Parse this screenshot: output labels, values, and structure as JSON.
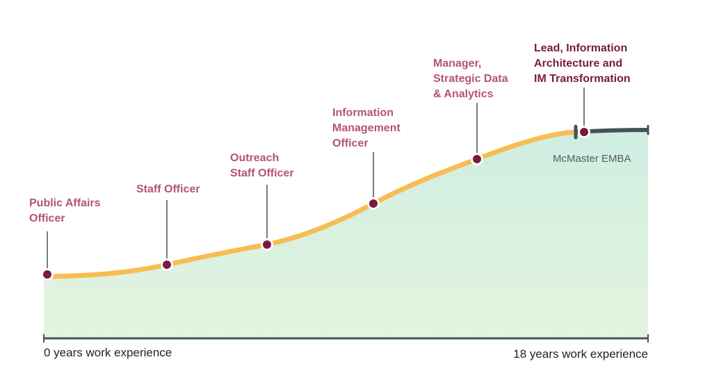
{
  "colors": {
    "curve": "#f7bd54",
    "marker_fill": "#7a1b3c",
    "marker_ring": "#ffffff",
    "role_label": "#b5527d",
    "final_label": "#7a1b3c",
    "emba_bar": "#44525c",
    "axis": "#44525c",
    "fill_top": "#cfeee2",
    "fill_bottom": "#e4f4de"
  },
  "axis": {
    "start_label": "0 years work experience",
    "end_label": "18 years work experience"
  },
  "emba": {
    "label": "McMaster EMBA"
  },
  "milestones": [
    {
      "id": "public-affairs-officer",
      "lines": [
        "Public Affairs",
        "Officer"
      ],
      "final": false
    },
    {
      "id": "staff-officer",
      "lines": [
        "Staff Officer"
      ],
      "final": false
    },
    {
      "id": "outreach-staff-officer",
      "lines": [
        "Outreach",
        "Staff Officer"
      ],
      "final": false
    },
    {
      "id": "information-management-officer",
      "lines": [
        "Information",
        "Management",
        "Officer"
      ],
      "final": false
    },
    {
      "id": "manager-strategic-data",
      "lines": [
        "Manager,",
        "Strategic Data",
        "& Analytics"
      ],
      "final": false
    },
    {
      "id": "lead-information-architecture",
      "lines": [
        "Lead, Information",
        "Architecture and",
        "IM Transformation"
      ],
      "final": true
    }
  ]
}
